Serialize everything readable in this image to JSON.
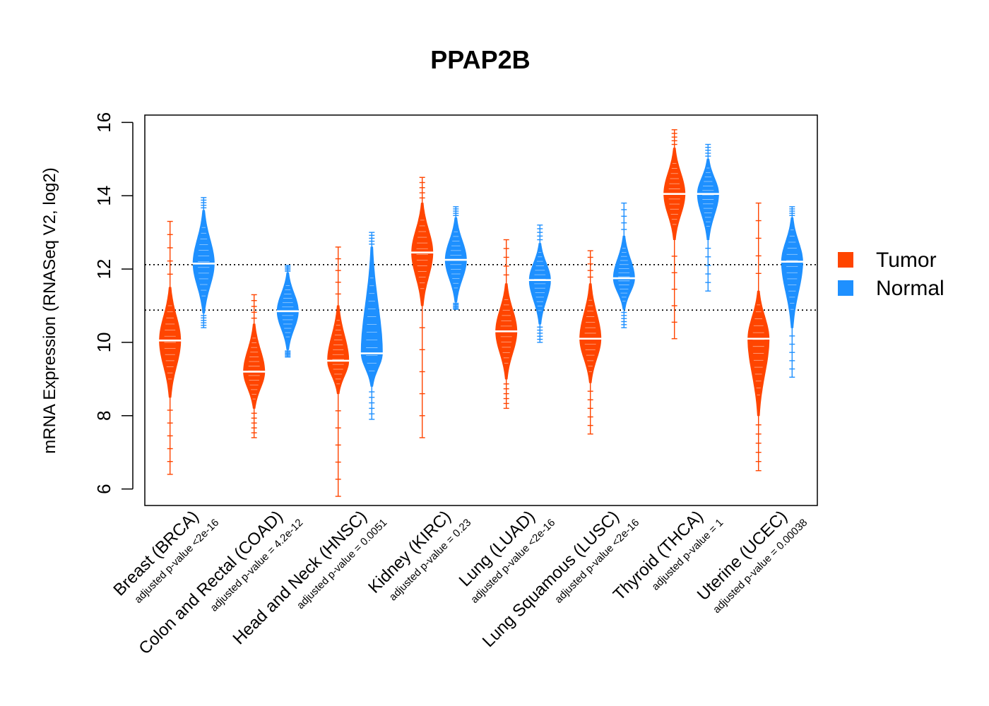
{
  "chart_data": {
    "type": "violin",
    "title": "PPAP2B",
    "xlabel": "",
    "ylabel": "mRNA Expression (RNASeq V2, log2)",
    "ylim": [
      5.55,
      16.2
    ],
    "yticks": [
      6,
      8,
      10,
      12,
      14,
      16
    ],
    "reference_lines": [
      12.12,
      10.88
    ],
    "legend": {
      "position": "right",
      "entries": [
        {
          "label": "Tumor",
          "color": "#FF4500"
        },
        {
          "label": "Normal",
          "color": "#1E90FF"
        }
      ]
    },
    "categories": [
      {
        "label": "Breast (BRCA)",
        "pvalue": "adjusted p-value <2e-16"
      },
      {
        "label": "Colon and Rectal (COAD)",
        "pvalue": "adjusted p-value = 4.2e-12"
      },
      {
        "label": "Head and Neck (HNSC)",
        "pvalue": "adjusted p-value = 0.0051"
      },
      {
        "label": "Kidney (KIRC)",
        "pvalue": "adjusted p-value = 0.23"
      },
      {
        "label": "Lung (LUAD)",
        "pvalue": "adjusted p-value <2e-16"
      },
      {
        "label": "Lung Squamous (LUSC)",
        "pvalue": "adjusted p-value <2e-16"
      },
      {
        "label": "Thyroid (THCA)",
        "pvalue": "adjusted p-value = 1"
      },
      {
        "label": "Uterine (UCEC)",
        "pvalue": "adjusted p-value = 0.00038"
      }
    ],
    "series": [
      {
        "name": "Tumor",
        "color": "#FF4500",
        "medians": [
          10.05,
          9.2,
          9.5,
          12.45,
          10.3,
          10.1,
          14.05,
          10.1
        ],
        "min": [
          6.4,
          7.4,
          5.8,
          7.4,
          8.2,
          7.5,
          10.1,
          6.5
        ],
        "max": [
          13.3,
          11.3,
          12.6,
          14.5,
          12.8,
          12.5,
          15.8,
          13.8
        ],
        "body": [
          [
            8.5,
            11.5
          ],
          [
            8.2,
            10.5
          ],
          [
            8.6,
            11.0
          ],
          [
            11.0,
            13.8
          ],
          [
            9.0,
            11.6
          ],
          [
            8.9,
            11.6
          ],
          [
            12.8,
            15.3
          ],
          [
            8.0,
            11.4
          ]
        ]
      },
      {
        "name": "Normal",
        "color": "#1E90FF",
        "medians": [
          12.15,
          10.85,
          9.7,
          12.25,
          11.7,
          11.75,
          14.05,
          12.2
        ],
        "min": [
          10.4,
          9.6,
          7.9,
          10.9,
          10.0,
          10.4,
          11.4,
          9.05
        ],
        "max": [
          13.95,
          12.1,
          13.0,
          13.7,
          13.2,
          13.8,
          15.4,
          13.7
        ],
        "body": [
          [
            10.8,
            13.6
          ],
          [
            9.8,
            11.9
          ],
          [
            8.8,
            12.6
          ],
          [
            11.1,
            13.4
          ],
          [
            10.5,
            12.7
          ],
          [
            10.9,
            12.9
          ],
          [
            12.8,
            15.0
          ],
          [
            10.4,
            13.4
          ]
        ]
      }
    ]
  }
}
